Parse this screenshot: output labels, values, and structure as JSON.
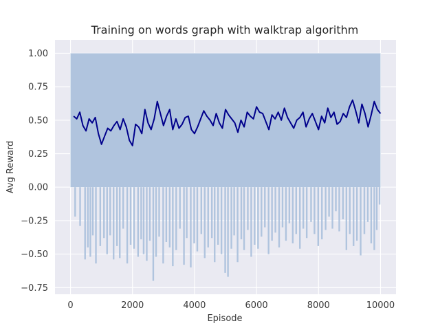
{
  "chart_data": {
    "type": "line",
    "title": "Training on words graph with walktrap algorithm",
    "xlabel": "Episode",
    "ylabel": "Avg Reward",
    "xlim": [
      -500,
      10500
    ],
    "ylim": [
      -0.8,
      1.1
    ],
    "xticks": [
      0,
      2000,
      4000,
      6000,
      8000,
      10000
    ],
    "yticks": [
      -0.75,
      -0.5,
      -0.25,
      0.0,
      0.25,
      0.5,
      0.75,
      1.0
    ],
    "xtick_labels": [
      "0",
      "2000",
      "4000",
      "6000",
      "8000",
      "10000"
    ],
    "ytick_labels": [
      "−0.75",
      "−0.50",
      "−0.25",
      "0.00",
      "0.25",
      "0.50",
      "0.75",
      "1.00"
    ],
    "grid": true,
    "background": "#eaeaf2",
    "series": [
      {
        "role": "raw",
        "color": "#b0c4de",
        "x_range": [
          0,
          10000
        ],
        "upper": 1.0,
        "band_lower": 0.0,
        "dips": [
          [
            150,
            -0.22
          ],
          [
            310,
            -0.29
          ],
          [
            470,
            -0.54
          ],
          [
            560,
            -0.45
          ],
          [
            640,
            -0.52
          ],
          [
            720,
            -0.36
          ],
          [
            820,
            -0.57
          ],
          [
            960,
            -0.44
          ],
          [
            1080,
            -0.38
          ],
          [
            1180,
            -0.5
          ],
          [
            1280,
            -0.36
          ],
          [
            1390,
            -0.54
          ],
          [
            1500,
            -0.44
          ],
          [
            1590,
            -0.53
          ],
          [
            1700,
            -0.31
          ],
          [
            1830,
            -0.57
          ],
          [
            1940,
            -0.43
          ],
          [
            2050,
            -0.46
          ],
          [
            2180,
            -0.52
          ],
          [
            2280,
            -0.39
          ],
          [
            2360,
            -0.5
          ],
          [
            2460,
            -0.55
          ],
          [
            2560,
            -0.4
          ],
          [
            2670,
            -0.7
          ],
          [
            2760,
            -0.52
          ],
          [
            2860,
            -0.37
          ],
          [
            2990,
            -0.57
          ],
          [
            3090,
            -0.41
          ],
          [
            3200,
            -0.45
          ],
          [
            3300,
            -0.59
          ],
          [
            3410,
            -0.47
          ],
          [
            3530,
            -0.31
          ],
          [
            3660,
            -0.58
          ],
          [
            3750,
            -0.38
          ],
          [
            3880,
            -0.6
          ],
          [
            3990,
            -0.42
          ],
          [
            4090,
            -0.48
          ],
          [
            4220,
            -0.35
          ],
          [
            4330,
            -0.53
          ],
          [
            4440,
            -0.45
          ],
          [
            4560,
            -0.38
          ],
          [
            4650,
            -0.56
          ],
          [
            4760,
            -0.43
          ],
          [
            4870,
            -0.5
          ],
          [
            4990,
            -0.64
          ],
          [
            5080,
            -0.67
          ],
          [
            5190,
            -0.46
          ],
          [
            5280,
            -0.36
          ],
          [
            5390,
            -0.56
          ],
          [
            5510,
            -0.39
          ],
          [
            5600,
            -0.47
          ],
          [
            5720,
            -0.32
          ],
          [
            5830,
            -0.52
          ],
          [
            5940,
            -0.43
          ],
          [
            6050,
            -0.46
          ],
          [
            6160,
            -0.37
          ],
          [
            6270,
            -0.3
          ],
          [
            6390,
            -0.5
          ],
          [
            6500,
            -0.4
          ],
          [
            6610,
            -0.34
          ],
          [
            6730,
            -0.45
          ],
          [
            6840,
            -0.3
          ],
          [
            6950,
            -0.4
          ],
          [
            7060,
            -0.27
          ],
          [
            7170,
            -0.42
          ],
          [
            7280,
            -0.35
          ],
          [
            7400,
            -0.46
          ],
          [
            7510,
            -0.31
          ],
          [
            7620,
            -0.38
          ],
          [
            7760,
            -0.26
          ],
          [
            7870,
            -0.35
          ],
          [
            7990,
            -0.44
          ],
          [
            8110,
            -0.39
          ],
          [
            8230,
            -0.32
          ],
          [
            8340,
            -0.22
          ],
          [
            8450,
            -0.31
          ],
          [
            8560,
            -0.18
          ],
          [
            8670,
            -0.33
          ],
          [
            8790,
            -0.24
          ],
          [
            8900,
            -0.47
          ],
          [
            9010,
            -0.35
          ],
          [
            9130,
            -0.44
          ],
          [
            9240,
            -0.4
          ],
          [
            9360,
            -0.51
          ],
          [
            9480,
            -0.35
          ],
          [
            9590,
            -0.26
          ],
          [
            9700,
            -0.42
          ],
          [
            9800,
            -0.47
          ],
          [
            9880,
            -0.32
          ],
          [
            9970,
            -0.13
          ]
        ]
      },
      {
        "role": "moving-average",
        "color": "#00008b",
        "x": [
          100,
          200,
          300,
          400,
          500,
          600,
          700,
          800,
          900,
          1000,
          1100,
          1200,
          1300,
          1400,
          1500,
          1600,
          1700,
          1800,
          1900,
          2000,
          2100,
          2200,
          2300,
          2400,
          2500,
          2600,
          2700,
          2800,
          2900,
          3000,
          3100,
          3200,
          3300,
          3400,
          3500,
          3600,
          3700,
          3800,
          3900,
          4000,
          4100,
          4200,
          4300,
          4400,
          4500,
          4600,
          4700,
          4800,
          4900,
          5000,
          5100,
          5200,
          5300,
          5400,
          5500,
          5600,
          5700,
          5800,
          5900,
          6000,
          6100,
          6200,
          6300,
          6400,
          6500,
          6600,
          6700,
          6800,
          6900,
          7000,
          7100,
          7200,
          7300,
          7400,
          7500,
          7600,
          7700,
          7800,
          7900,
          8000,
          8100,
          8200,
          8300,
          8400,
          8500,
          8600,
          8700,
          8800,
          8900,
          9000,
          9100,
          9200,
          9300,
          9400,
          9500,
          9600,
          9700,
          9800,
          9900,
          10000
        ],
        "y": [
          0.53,
          0.51,
          0.56,
          0.46,
          0.42,
          0.51,
          0.48,
          0.52,
          0.4,
          0.32,
          0.38,
          0.44,
          0.42,
          0.46,
          0.49,
          0.43,
          0.51,
          0.45,
          0.35,
          0.31,
          0.47,
          0.45,
          0.4,
          0.58,
          0.48,
          0.43,
          0.51,
          0.64,
          0.55,
          0.46,
          0.53,
          0.58,
          0.43,
          0.51,
          0.44,
          0.47,
          0.52,
          0.53,
          0.43,
          0.4,
          0.45,
          0.51,
          0.57,
          0.53,
          0.5,
          0.46,
          0.55,
          0.48,
          0.44,
          0.58,
          0.54,
          0.51,
          0.48,
          0.41,
          0.5,
          0.45,
          0.56,
          0.53,
          0.51,
          0.6,
          0.56,
          0.55,
          0.49,
          0.43,
          0.54,
          0.51,
          0.56,
          0.5,
          0.59,
          0.52,
          0.48,
          0.44,
          0.5,
          0.52,
          0.56,
          0.45,
          0.51,
          0.55,
          0.49,
          0.43,
          0.53,
          0.48,
          0.59,
          0.52,
          0.56,
          0.47,
          0.49,
          0.55,
          0.52,
          0.6,
          0.65,
          0.57,
          0.48,
          0.62,
          0.55,
          0.45,
          0.54,
          0.64,
          0.58,
          0.55
        ]
      }
    ]
  }
}
